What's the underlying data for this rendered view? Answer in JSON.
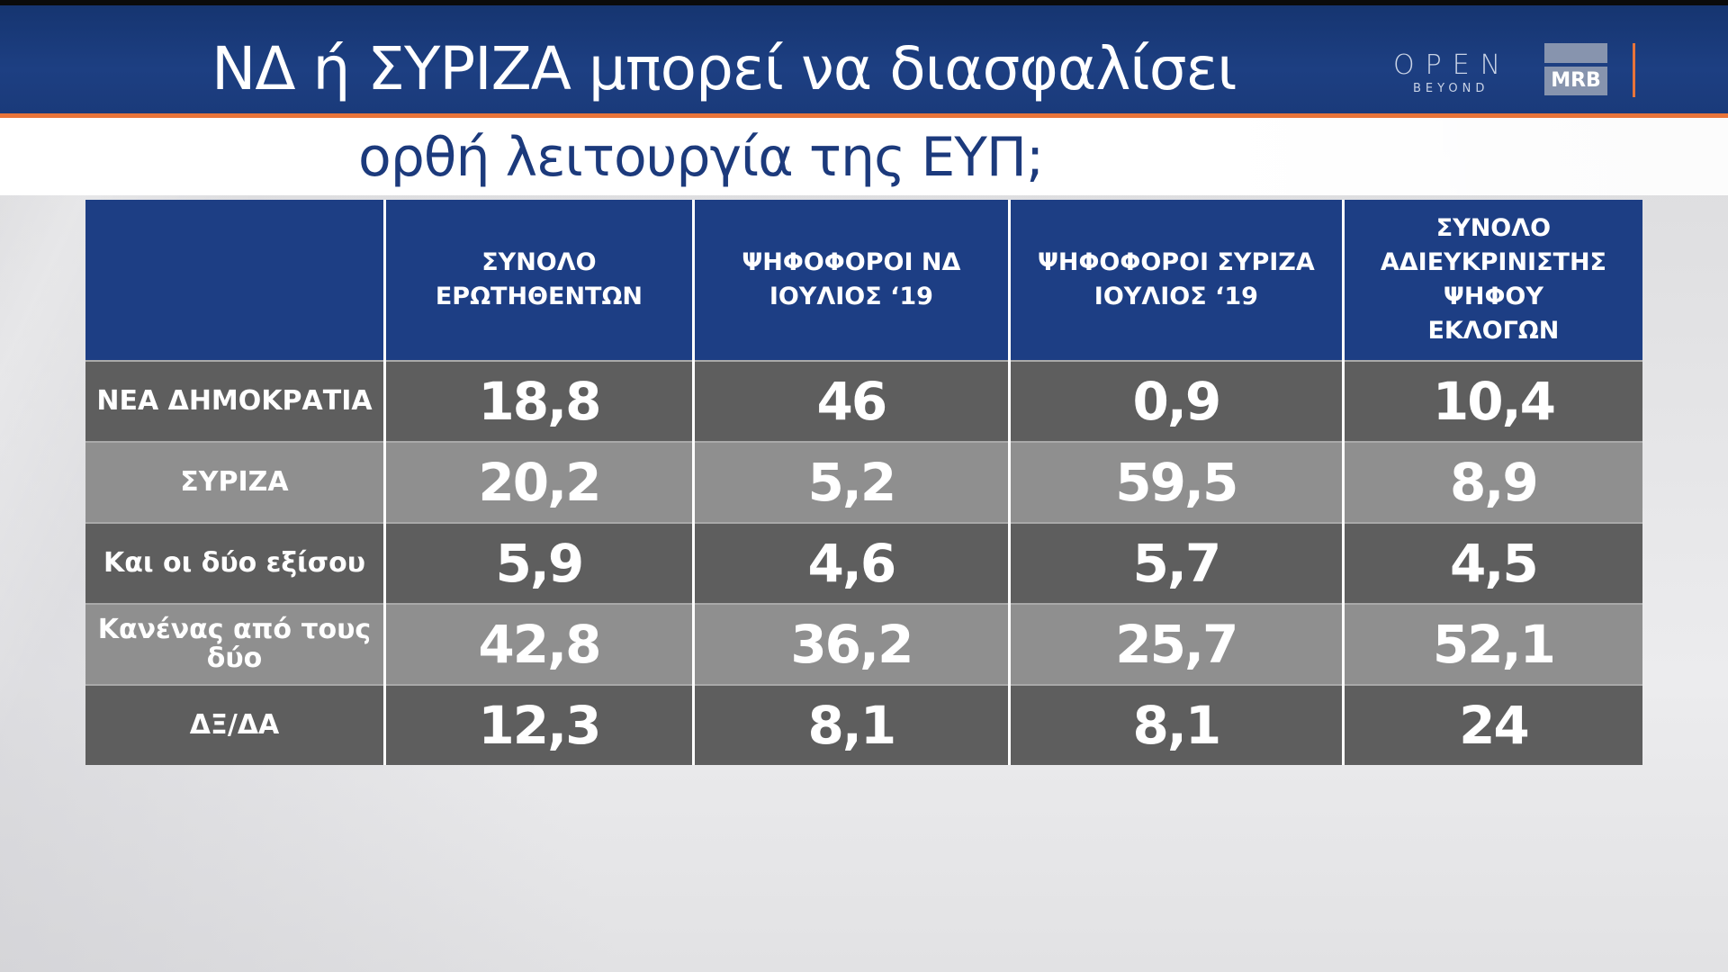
{
  "header": {
    "title_line1": "ΝΔ ή ΣΥΡΙΖΑ μπορεί να διασφαλίσει",
    "title_line2": "ορθή λειτουργία της ΕΥΠ;",
    "logo_open": "OPEN",
    "logo_beyond": "BEYOND",
    "logo_mrb": "MRB"
  },
  "colors": {
    "header_blue": "#1d3e84",
    "accent_orange": "#e8743a",
    "row_dark": "#5e5e5e",
    "row_light": "#8f8f8f"
  },
  "table": {
    "columns": [
      "",
      "ΣΥΝΟΛΟ ΕΡΩΤΗΘΕΝΤΩΝ",
      "ΨΗΦΟΦΟΡΟΙ ΝΔ ΙΟΥΛΙΟΣ ‘19",
      "ΨΗΦΟΦΟΡΟΙ ΣΥΡΙΖΑ ΙΟΥΛΙΟΣ ‘19",
      "ΣΥΝΟΛΟ ΑΔΙΕΥΚΡΙΝΙΣΤΗΣ ΨΗΦΟΥ ΕΚΛΟΓΩΝ"
    ],
    "rows": [
      {
        "label": "ΝΕΑ ΔΗΜΟΚΡΑΤΙΑ",
        "values": [
          "18,8",
          "46",
          "0,9",
          "10,4"
        ]
      },
      {
        "label": "ΣΥΡΙΖΑ",
        "values": [
          "20,2",
          "5,2",
          "59,5",
          "8,9"
        ]
      },
      {
        "label": "Και οι δύο εξίσου",
        "values": [
          "5,9",
          "4,6",
          "5,7",
          "4,5"
        ]
      },
      {
        "label": "Κανένας από τους δύο",
        "values": [
          "42,8",
          "36,2",
          "25,7",
          "52,1"
        ]
      },
      {
        "label": "ΔΞ/ΔΑ",
        "values": [
          "12,3",
          "8,1",
          "8,1",
          "24"
        ]
      }
    ]
  }
}
